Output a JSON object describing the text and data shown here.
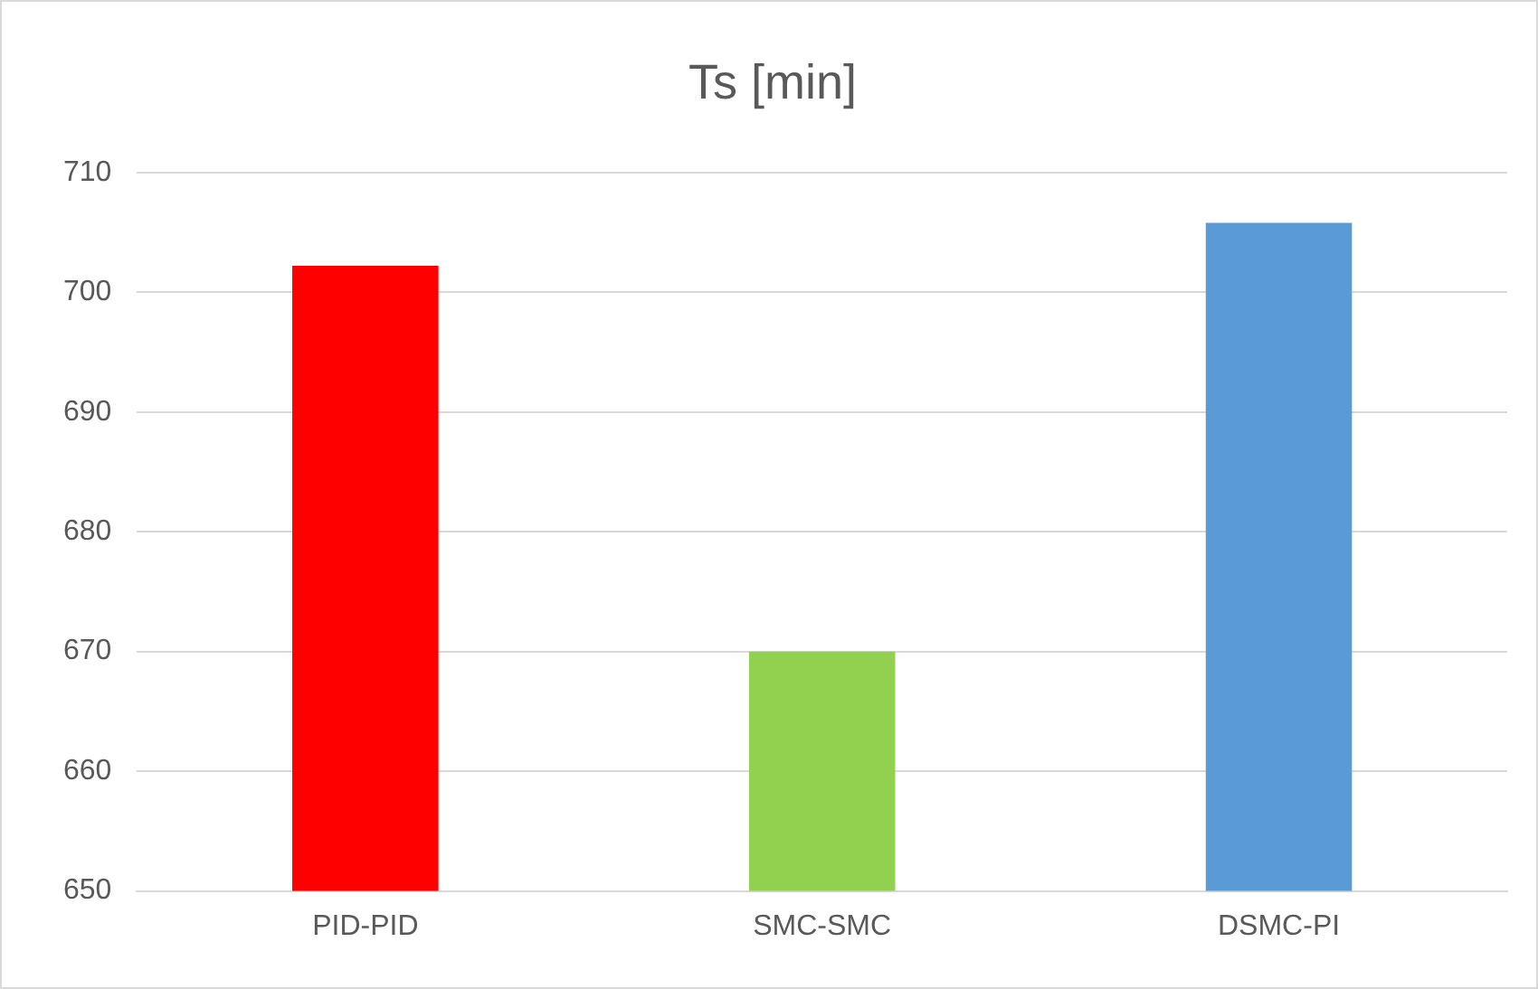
{
  "chart_data": {
    "type": "bar",
    "title": "Ts [min]",
    "categories": [
      "PID-PID",
      "SMC-SMC",
      "DSMC-PI"
    ],
    "values": [
      702.2,
      670,
      705.8
    ],
    "colors": [
      "#ff0000",
      "#92d050",
      "#5b9bd5"
    ],
    "ylim": [
      650,
      710
    ],
    "yticks": [
      650,
      660,
      670,
      680,
      690,
      700,
      710
    ],
    "grid": "y"
  }
}
